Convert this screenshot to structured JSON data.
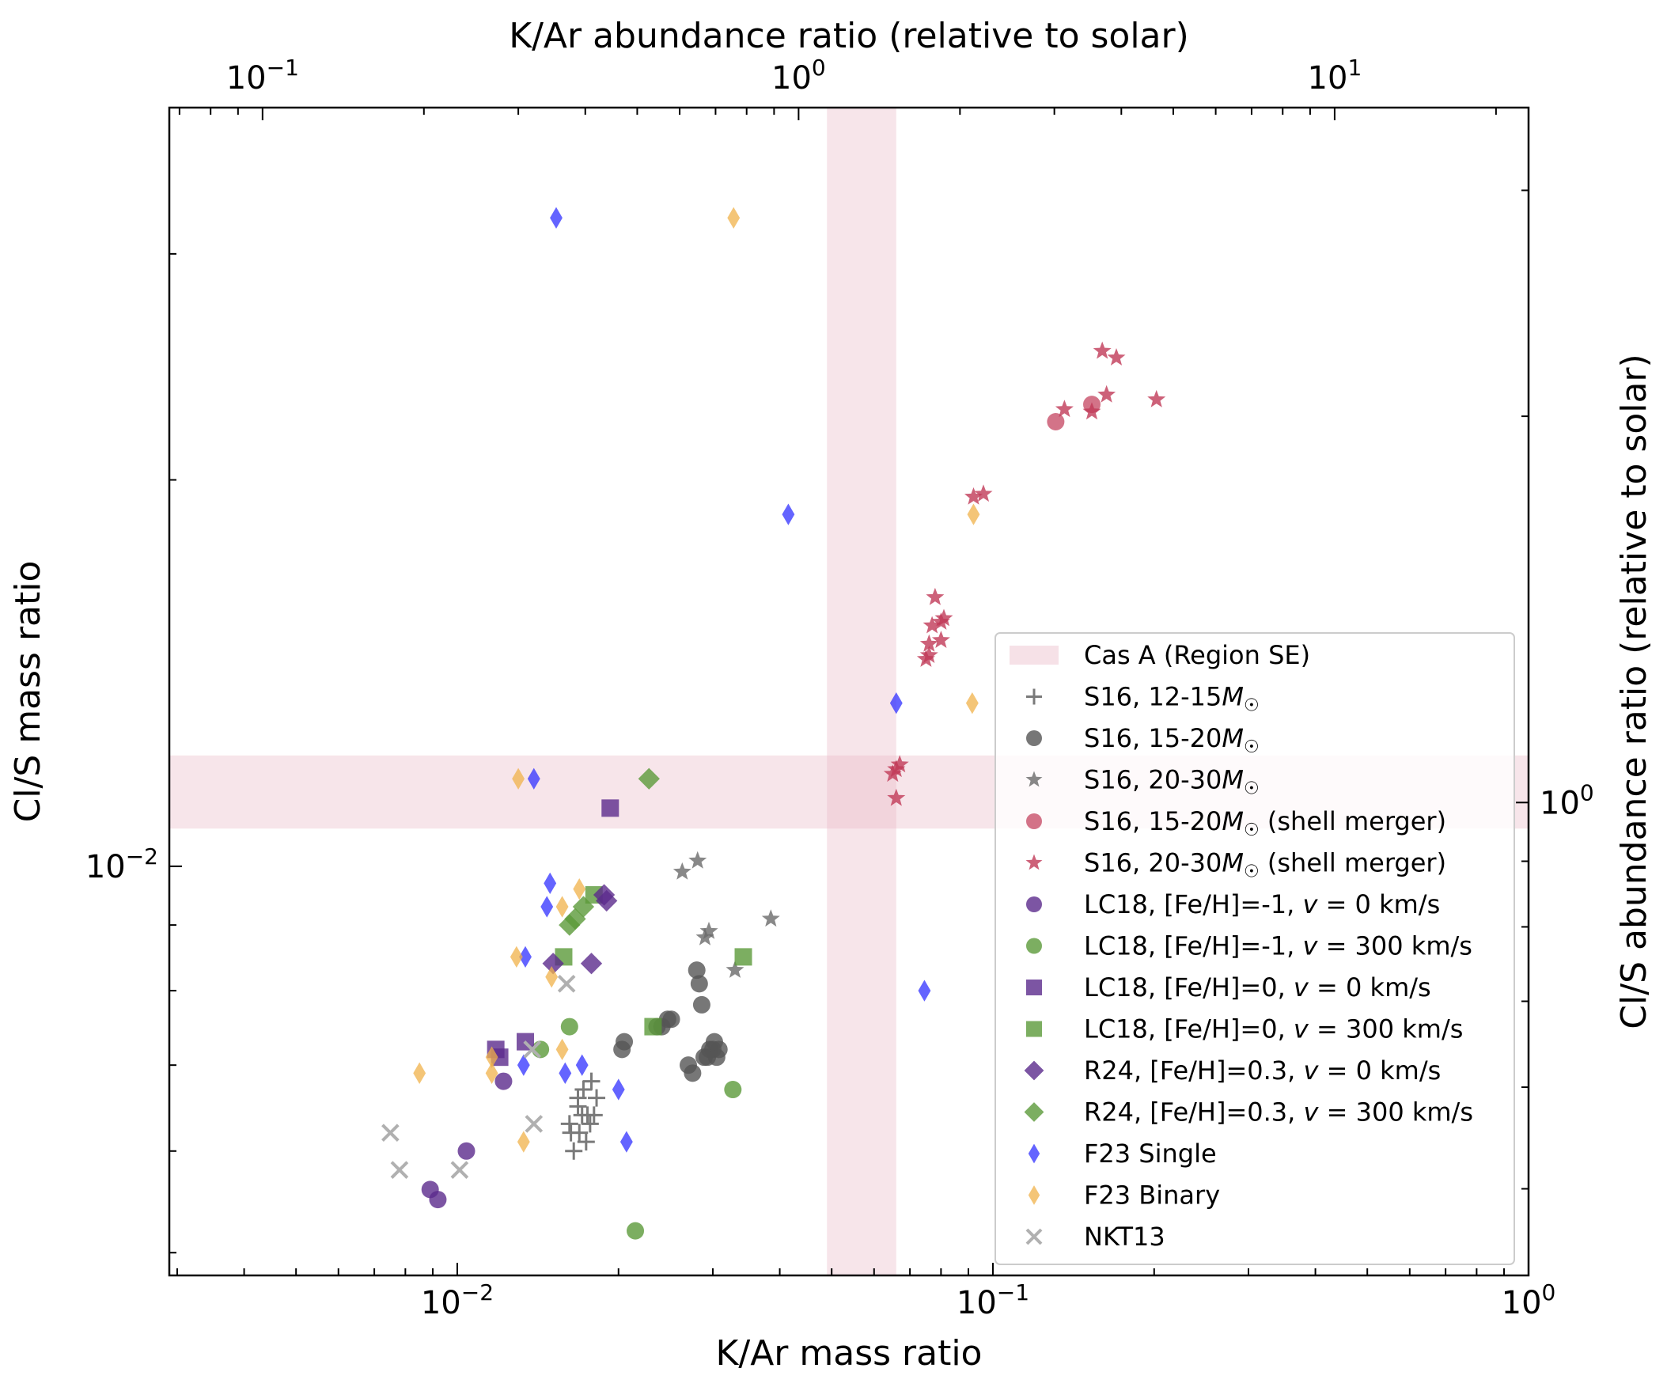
{
  "chart_data": {
    "type": "scatter",
    "title": "",
    "xlabel": "K/Ar mass ratio",
    "ylabel": "Cl/S mass ratio",
    "x_top_label": "K/Ar abundance ratio (relative to solar)",
    "y_right_label": "Cl/S abundance ratio (relative to solar)",
    "xscale": "log",
    "yscale": "log",
    "xlim": [
      0.0029,
      1.0
    ],
    "ylim": [
      0.0048,
      0.039
    ],
    "x_ticks": [
      {
        "value": 0.01,
        "base": "10",
        "exp": "−2"
      },
      {
        "value": 0.1,
        "base": "10",
        "exp": "−1"
      },
      {
        "value": 1,
        "base": "10",
        "exp": "0"
      }
    ],
    "y_ticks": [
      {
        "value": 0.01,
        "base": "10",
        "exp": "−2"
      }
    ],
    "top_xlim": [
      0.067,
      23.0
    ],
    "top_ticks": [
      {
        "value": 0.1,
        "base": "10",
        "exp": "−1"
      },
      {
        "value": 1,
        "base": "10",
        "exp": "0"
      },
      {
        "value": 10,
        "base": "10",
        "exp": "1"
      }
    ],
    "right_ylim": [
      0.428,
      3.48
    ],
    "right_ticks": [
      {
        "value": 1,
        "base": "10",
        "exp": "0"
      }
    ],
    "shaded_regions": [
      {
        "name": "Cas A (Region SE)",
        "x_range": [
          0.049,
          0.066
        ],
        "y_range": [
          0.0107,
          0.0122
        ],
        "color": "#e8b4c2"
      }
    ],
    "legend_position": "lower-right",
    "series": [
      {
        "name": "S16, 12-15M☉",
        "label": "S16, 12-15",
        "label_suffix": "",
        "mass_unit": true,
        "marker": "plus",
        "color": "#7a7a7a",
        "points": [
          [
            0.0162,
            0.0063
          ],
          [
            0.0168,
            0.0065
          ],
          [
            0.0172,
            0.0067
          ],
          [
            0.0178,
            0.0068
          ],
          [
            0.0182,
            0.0066
          ],
          [
            0.0175,
            0.0064
          ],
          [
            0.0169,
            0.0062
          ],
          [
            0.0165,
            0.006
          ],
          [
            0.0174,
            0.0061
          ],
          [
            0.0171,
            0.0064
          ],
          [
            0.018,
            0.0064
          ],
          [
            0.0168,
            0.0066
          ],
          [
            0.0177,
            0.0063
          ],
          [
            0.0163,
            0.0062
          ]
        ]
      },
      {
        "name": "S16, 15-20M☉",
        "label": "S16, 15-20",
        "label_suffix": "",
        "mass_unit": true,
        "marker": "circle",
        "color": "#555555",
        "points": [
          [
            0.0205,
            0.0073
          ],
          [
            0.0203,
            0.0072
          ],
          [
            0.0236,
            0.0075
          ],
          [
            0.0241,
            0.0075
          ],
          [
            0.0247,
            0.0076
          ],
          [
            0.0251,
            0.0076
          ],
          [
            0.027,
            0.007
          ],
          [
            0.0275,
            0.0069
          ],
          [
            0.028,
            0.0083
          ],
          [
            0.0283,
            0.0081
          ],
          [
            0.0286,
            0.0078
          ],
          [
            0.0289,
            0.0071
          ],
          [
            0.0293,
            0.0071
          ],
          [
            0.0296,
            0.0072
          ],
          [
            0.03,
            0.0072
          ],
          [
            0.0305,
            0.0071
          ],
          [
            0.0308,
            0.0072
          ],
          [
            0.0302,
            0.0073
          ]
        ]
      },
      {
        "name": "S16, 20-30M☉",
        "label": "S16, 20-30",
        "label_suffix": "",
        "mass_unit": true,
        "marker": "star",
        "color": "#6a6a6a",
        "points": [
          [
            0.0263,
            0.0099
          ],
          [
            0.0281,
            0.0101
          ],
          [
            0.029,
            0.0088
          ],
          [
            0.0295,
            0.0089
          ],
          [
            0.033,
            0.0083
          ],
          [
            0.0385,
            0.0091
          ]
        ]
      },
      {
        "name": "S16, 15-20M☉ (shell merger)",
        "label": "S16, 15-20",
        "label_suffix": " (shell merger)",
        "mass_unit": true,
        "marker": "circle",
        "color": "#c8506a",
        "points": [
          [
            0.131,
            0.0222
          ],
          [
            0.153,
            0.0229
          ]
        ]
      },
      {
        "name": "S16, 20-30M☉ (shell merger)",
        "label": "S16, 20-30",
        "label_suffix": " (shell merger)",
        "mass_unit": true,
        "marker": "star",
        "color": "#c03a58",
        "points": [
          [
            0.136,
            0.0227
          ],
          [
            0.153,
            0.0226
          ],
          [
            0.16,
            0.0252
          ],
          [
            0.163,
            0.0233
          ],
          [
            0.17,
            0.0249
          ],
          [
            0.202,
            0.0231
          ],
          [
            0.092,
            0.0194
          ],
          [
            0.096,
            0.0195
          ],
          [
            0.078,
            0.0162
          ],
          [
            0.08,
            0.0155
          ],
          [
            0.081,
            0.0156
          ],
          [
            0.077,
            0.0154
          ],
          [
            0.076,
            0.0149
          ],
          [
            0.08,
            0.015
          ],
          [
            0.076,
            0.0146
          ],
          [
            0.075,
            0.0145
          ],
          [
            0.067,
            0.012
          ],
          [
            0.066,
            0.0119
          ],
          [
            0.065,
            0.0118
          ],
          [
            0.066,
            0.0113
          ]
        ]
      },
      {
        "name": "LC18, [Fe/H]=-1, v = 0 km/s",
        "label": "LC18, [Fe/H]=-1, ",
        "v_part": "v",
        "value_part": " = 0 km/s",
        "mass_unit": false,
        "marker": "circle",
        "color": "#5b2a8c",
        "points": [
          [
            0.0122,
            0.0068
          ],
          [
            0.0104,
            0.006
          ],
          [
            0.0089,
            0.0056
          ],
          [
            0.0092,
            0.0055
          ]
        ]
      },
      {
        "name": "LC18, [Fe/H]=-1, v = 300 km/s",
        "label": "LC18, [Fe/H]=-1, ",
        "v_part": "v",
        "value_part": " = 300 km/s",
        "mass_unit": false,
        "marker": "circle",
        "color": "#5b9a3a",
        "points": [
          [
            0.0143,
            0.0072
          ],
          [
            0.0162,
            0.0075
          ],
          [
            0.0215,
            0.0052
          ],
          [
            0.0327,
            0.0067
          ]
        ]
      },
      {
        "name": "LC18, [Fe/H]=0, v = 0 km/s",
        "label": "LC18, [Fe/H]=0, ",
        "v_part": "v",
        "value_part": " = 0 km/s",
        "mass_unit": false,
        "marker": "square",
        "color": "#5b2a8c",
        "points": [
          [
            0.0193,
            0.0111
          ],
          [
            0.0134,
            0.0073
          ],
          [
            0.0118,
            0.0072
          ],
          [
            0.012,
            0.0071
          ]
        ]
      },
      {
        "name": "LC18, [Fe/H]=0, v = 300 km/s",
        "label": "LC18, [Fe/H]=0, ",
        "v_part": "v",
        "value_part": " = 300 km/s",
        "mass_unit": false,
        "marker": "square",
        "color": "#5b9a3a",
        "points": [
          [
            0.018,
            0.0095
          ],
          [
            0.0158,
            0.0085
          ],
          [
            0.0342,
            0.0085
          ],
          [
            0.0232,
            0.0075
          ]
        ]
      },
      {
        "name": "R24, [Fe/H]=0.3, v = 0 km/s",
        "label": "R24, [Fe/H]=0.3, ",
        "v_part": "v",
        "value_part": " = 0 km/s",
        "mass_unit": false,
        "marker": "diamond",
        "color": "#5b2a8c",
        "points": [
          [
            0.0188,
            0.0095
          ],
          [
            0.019,
            0.0094
          ],
          [
            0.0151,
            0.0084
          ],
          [
            0.0178,
            0.0084
          ]
        ]
      },
      {
        "name": "R24, [Fe/H]=0.3, v = 300 km/s",
        "label": "R24, [Fe/H]=0.3, ",
        "v_part": "v",
        "value_part": " = 300 km/s",
        "mass_unit": false,
        "marker": "diamond",
        "color": "#5b9a3a",
        "points": [
          [
            0.0228,
            0.0117
          ],
          [
            0.0172,
            0.0093
          ],
          [
            0.0166,
            0.0091
          ],
          [
            0.0162,
            0.009
          ]
        ]
      },
      {
        "name": "F23 Single",
        "label": "F23 Single",
        "label_suffix": "",
        "mass_unit": false,
        "marker": "thin-diamond",
        "color": "#3030ff",
        "points": [
          [
            0.0153,
            0.032
          ],
          [
            0.0415,
            0.0188
          ],
          [
            0.066,
            0.0134
          ],
          [
            0.0745,
            0.008
          ],
          [
            0.0139,
            0.0117
          ],
          [
            0.0149,
            0.0097
          ],
          [
            0.0147,
            0.0093
          ],
          [
            0.0134,
            0.0085
          ],
          [
            0.0133,
            0.007
          ],
          [
            0.0159,
            0.0069
          ],
          [
            0.0171,
            0.007
          ],
          [
            0.02,
            0.0067
          ],
          [
            0.0207,
            0.0061
          ]
        ]
      },
      {
        "name": "F23 Binary",
        "label": "F23 Binary",
        "label_suffix": "",
        "mass_unit": false,
        "marker": "thin-diamond",
        "color": "#f0b24a",
        "points": [
          [
            0.0328,
            0.032
          ],
          [
            0.092,
            0.0188
          ],
          [
            0.0915,
            0.0134
          ],
          [
            0.013,
            0.0117
          ],
          [
            0.0169,
            0.0096
          ],
          [
            0.0157,
            0.0093
          ],
          [
            0.0129,
            0.0085
          ],
          [
            0.015,
            0.0082
          ],
          [
            0.0157,
            0.0072
          ],
          [
            0.0116,
            0.0071
          ],
          [
            0.0116,
            0.0069
          ],
          [
            0.0085,
            0.0069
          ],
          [
            0.0133,
            0.0061
          ]
        ]
      },
      {
        "name": "NKT13",
        "label": "NKT13",
        "label_suffix": "",
        "mass_unit": false,
        "marker": "x",
        "color": "#b0b0b0",
        "points": [
          [
            0.016,
            0.0081
          ],
          [
            0.0138,
            0.0072
          ],
          [
            0.0139,
            0.0063
          ],
          [
            0.0075,
            0.0062
          ],
          [
            0.0078,
            0.0058
          ],
          [
            0.0101,
            0.0058
          ]
        ]
      }
    ]
  }
}
